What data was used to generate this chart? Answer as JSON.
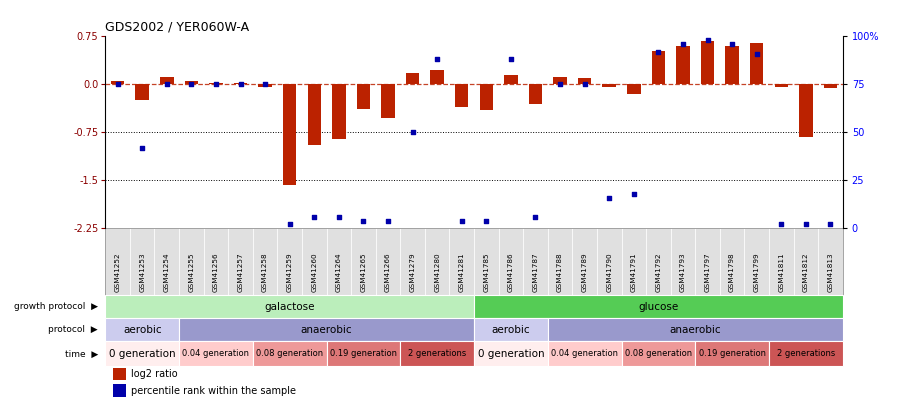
{
  "title": "GDS2002 / YER060W-A",
  "samples": [
    "GSM41252",
    "GSM41253",
    "GSM41254",
    "GSM41255",
    "GSM41256",
    "GSM41257",
    "GSM41258",
    "GSM41259",
    "GSM41260",
    "GSM41264",
    "GSM41265",
    "GSM41266",
    "GSM41279",
    "GSM41280",
    "GSM41281",
    "GSM41785",
    "GSM41786",
    "GSM41787",
    "GSM41788",
    "GSM41789",
    "GSM41790",
    "GSM41791",
    "GSM41792",
    "GSM41793",
    "GSM41797",
    "GSM41798",
    "GSM41799",
    "GSM41811",
    "GSM41812",
    "GSM41813"
  ],
  "log2_ratio": [
    0.05,
    -0.25,
    0.12,
    0.06,
    0.02,
    0.02,
    -0.04,
    -1.58,
    -0.95,
    -0.85,
    -0.38,
    -0.52,
    0.18,
    0.22,
    -0.35,
    -0.4,
    0.15,
    -0.3,
    0.12,
    0.1,
    -0.04,
    -0.15,
    0.52,
    0.6,
    0.68,
    0.6,
    0.65,
    -0.04,
    -0.82,
    -0.05
  ],
  "percentile": [
    75,
    42,
    75,
    75,
    75,
    75,
    75,
    2,
    6,
    6,
    4,
    4,
    50,
    88,
    4,
    4,
    88,
    6,
    75,
    75,
    16,
    18,
    92,
    96,
    98,
    96,
    91,
    2,
    2,
    2
  ],
  "ylim_left": [
    -2.25,
    0.75
  ],
  "ylim_right": [
    0,
    100
  ],
  "yticks_left": [
    0.75,
    0.0,
    -0.75,
    -1.5,
    -2.25
  ],
  "yticks_right_vals": [
    100,
    75,
    50,
    25,
    0
  ],
  "yticks_right_labels": [
    "100%",
    "75",
    "50",
    "25",
    "0"
  ],
  "bar_color": "#bb2200",
  "dot_color": "#0000aa",
  "xtick_bg": "#dddddd",
  "growth_protocol_groups": [
    {
      "label": "galactose",
      "start": 0,
      "end": 14,
      "color": "#bbeebb"
    },
    {
      "label": "glucose",
      "start": 15,
      "end": 29,
      "color": "#55cc55"
    }
  ],
  "protocol_groups": [
    {
      "label": "aerobic",
      "start": 0,
      "end": 2,
      "color": "#ccccee"
    },
    {
      "label": "anaerobic",
      "start": 3,
      "end": 14,
      "color": "#9999cc"
    },
    {
      "label": "aerobic",
      "start": 15,
      "end": 17,
      "color": "#ccccee"
    },
    {
      "label": "anaerobic",
      "start": 18,
      "end": 29,
      "color": "#9999cc"
    }
  ],
  "time_groups": [
    {
      "label": "0 generation",
      "start": 0,
      "end": 2,
      "color": "#ffeeee"
    },
    {
      "label": "0.04 generation",
      "start": 3,
      "end": 5,
      "color": "#ffcccc"
    },
    {
      "label": "0.08 generation",
      "start": 6,
      "end": 8,
      "color": "#ee9999"
    },
    {
      "label": "0.19 generation",
      "start": 9,
      "end": 11,
      "color": "#dd7777"
    },
    {
      "label": "2 generations",
      "start": 12,
      "end": 14,
      "color": "#cc5555"
    },
    {
      "label": "0 generation",
      "start": 15,
      "end": 17,
      "color": "#ffeeee"
    },
    {
      "label": "0.04 generation",
      "start": 18,
      "end": 20,
      "color": "#ffcccc"
    },
    {
      "label": "0.08 generation",
      "start": 21,
      "end": 23,
      "color": "#ee9999"
    },
    {
      "label": "0.19 generation",
      "start": 24,
      "end": 26,
      "color": "#dd7777"
    },
    {
      "label": "2 generations",
      "start": 27,
      "end": 29,
      "color": "#cc5555"
    }
  ],
  "row_labels": [
    "growth protocol",
    "protocol",
    "time"
  ],
  "legend": [
    {
      "color": "#bb2200",
      "label": "log2 ratio"
    },
    {
      "color": "#0000aa",
      "label": "percentile rank within the sample"
    }
  ]
}
